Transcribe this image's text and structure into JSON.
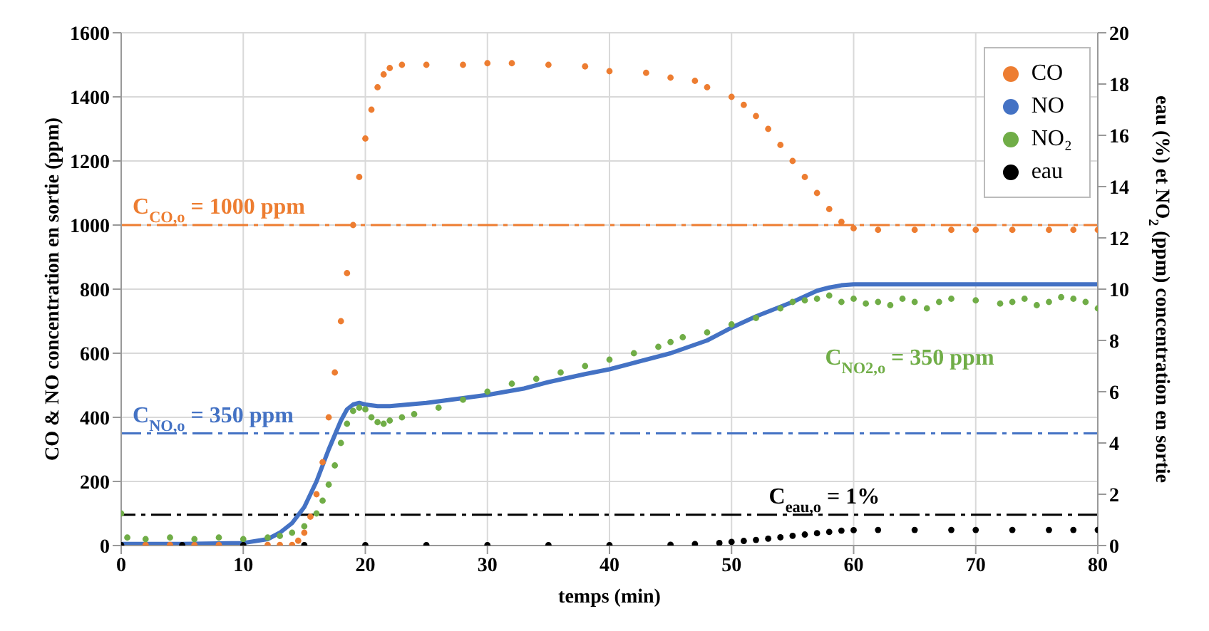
{
  "chart_data": {
    "type": "scatter",
    "xlabel": "temps (min)",
    "ylabel": "CO & NO concentration en sortie (ppm)",
    "y2label": "eau (%) et NO$_{2}$ (ppm) concentration en sortie",
    "xlim": [
      0,
      80
    ],
    "xticks": [
      0,
      10,
      20,
      30,
      40,
      50,
      60,
      70,
      80
    ],
    "ylim": [
      0,
      1600
    ],
    "yticks": [
      0,
      200,
      400,
      600,
      800,
      1000,
      1200,
      1400,
      1600
    ],
    "y2lim": [
      0,
      20
    ],
    "y2ticks": [
      0,
      2,
      4,
      6,
      8,
      10,
      12,
      14,
      16,
      18,
      20
    ],
    "grid": true,
    "legend": "top right",
    "series": [
      {
        "name": "CO",
        "color": "#ed7d31",
        "marker": "circle",
        "x": [
          2,
          4,
          6,
          8,
          10,
          12,
          13,
          14,
          14.5,
          15,
          15.5,
          16,
          16.5,
          17,
          17.5,
          18,
          18.5,
          19,
          19.5,
          20,
          20.5,
          21,
          21.5,
          22,
          23,
          25,
          28,
          30,
          32,
          35,
          38,
          40,
          43,
          45,
          47,
          48,
          50,
          51,
          52,
          53,
          54,
          55,
          56,
          57,
          58,
          59,
          60,
          62,
          65,
          68,
          70,
          73,
          76,
          78,
          80
        ],
        "values": [
          2,
          2,
          2,
          2,
          null,
          2,
          2,
          2,
          15,
          40,
          90,
          160,
          260,
          400,
          540,
          700,
          850,
          1000,
          1150,
          1270,
          1360,
          1430,
          1470,
          1490,
          1500,
          1500,
          1500,
          1505,
          1505,
          1500,
          1495,
          1480,
          1475,
          1460,
          1450,
          1430,
          1400,
          1375,
          1340,
          1300,
          1250,
          1200,
          1150,
          1100,
          1050,
          1010,
          990,
          985,
          985,
          985,
          985,
          985,
          985,
          985,
          985
        ]
      },
      {
        "name": "NO",
        "color": "#4472c4",
        "type": "line",
        "marker": "none",
        "x": [
          0,
          5,
          10,
          12,
          13,
          14,
          15,
          16,
          17,
          18,
          18.5,
          19,
          19.5,
          20,
          21,
          22,
          25,
          28,
          30,
          33,
          35,
          38,
          40,
          43,
          45,
          48,
          50,
          52,
          55,
          57,
          58,
          59,
          60,
          65,
          70,
          75,
          80
        ],
        "values": [
          5,
          5,
          8,
          20,
          40,
          70,
          120,
          200,
          300,
          390,
          425,
          440,
          445,
          440,
          435,
          435,
          445,
          460,
          470,
          490,
          510,
          535,
          550,
          580,
          600,
          640,
          680,
          715,
          760,
          795,
          805,
          812,
          815,
          815,
          815,
          815,
          815
        ]
      },
      {
        "name": "NO₂",
        "color": "#70ad47",
        "marker": "circle",
        "x": [
          0,
          0.5,
          2,
          4,
          6,
          8,
          10,
          12,
          13,
          14,
          15,
          16,
          16.5,
          17,
          17.5,
          18,
          18.5,
          19,
          19.5,
          20,
          20.5,
          21,
          21.5,
          22,
          23,
          24,
          26,
          28,
          30,
          32,
          34,
          36,
          38,
          40,
          42,
          44,
          45,
          46,
          48,
          50,
          52,
          54,
          55,
          56,
          57,
          58,
          59,
          60,
          61,
          62,
          63,
          64,
          65,
          66,
          67,
          68,
          70,
          72,
          73,
          74,
          75,
          76,
          77,
          78,
          79,
          80
        ],
        "values": [
          100,
          25,
          20,
          25,
          20,
          25,
          20,
          25,
          30,
          40,
          60,
          100,
          140,
          190,
          250,
          320,
          380,
          420,
          430,
          425,
          400,
          385,
          380,
          390,
          400,
          410,
          430,
          455,
          480,
          505,
          520,
          540,
          560,
          580,
          600,
          620,
          635,
          650,
          665,
          690,
          710,
          740,
          760,
          765,
          770,
          780,
          760,
          770,
          755,
          760,
          750,
          770,
          760,
          740,
          760,
          770,
          765,
          755,
          760,
          770,
          750,
          760,
          775,
          770,
          760,
          740
        ]
      },
      {
        "name": "eau",
        "color": "#000000",
        "marker": "circle",
        "axis": "y2",
        "x": [
          0,
          5,
          10,
          15,
          20,
          25,
          30,
          35,
          40,
          45,
          47,
          49,
          50,
          51,
          52,
          53,
          54,
          55,
          56,
          57,
          58,
          59,
          60,
          62,
          65,
          68,
          70,
          73,
          76,
          78,
          80
        ],
        "values": [
          0.02,
          0.02,
          0.02,
          0.02,
          0.02,
          0.02,
          0.02,
          0.02,
          0.02,
          0.03,
          0.06,
          0.1,
          0.14,
          0.18,
          0.22,
          0.27,
          0.32,
          0.38,
          0.43,
          0.48,
          0.53,
          0.58,
          0.6,
          0.61,
          0.61,
          0.61,
          0.61,
          0.61,
          0.61,
          0.61,
          0.61
        ]
      }
    ],
    "ref_lines": [
      {
        "axis": "y",
        "value": 1000,
        "label": "C$_{CO,o}$ = 1000 ppm",
        "color": "#ed7d31",
        "line_style": "dashdot"
      },
      {
        "axis": "y",
        "value": 350,
        "label": "C$_{NO,o}$ = 350 ppm",
        "color": "#4472c4",
        "line_style": "dashdot"
      },
      {
        "axis": "y2",
        "value": 1.2,
        "label": "C$_{eau,o}$ = 1%",
        "color": "#000000",
        "line_style": "dashdot"
      }
    ],
    "annotations": [
      "C$_{NO2,o}$ = 350 ppm"
    ]
  }
}
